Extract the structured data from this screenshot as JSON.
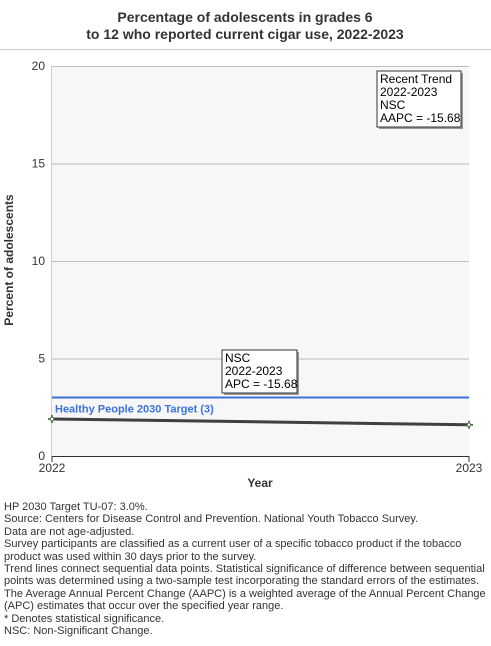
{
  "chart_data": {
    "type": "line",
    "title_lines": [
      "Percentage of adolescents in grades 6",
      "to 12 who reported current cigar use, 2022-2023"
    ],
    "xlabel": "Year",
    "ylabel": "Percent of adolescents",
    "x": [
      2022,
      2023
    ],
    "x_tick_labels": [
      "2022",
      "2023"
    ],
    "ylim": [
      0,
      20
    ],
    "y_ticks": [
      0,
      5,
      10,
      15,
      20
    ],
    "grid": true,
    "series": [
      {
        "values": [
          1.9,
          1.6
        ],
        "color": "#404040"
      }
    ],
    "target": {
      "value": 3.0,
      "label": "Healthy People 2030 Target (3)",
      "color": "#3b73d6"
    },
    "trend_box": {
      "lines": [
        "Recent Trend",
        "2022-2023",
        "NSC",
        "AAPC = -15.68"
      ],
      "position": "top-right"
    },
    "segment_box": {
      "lines": [
        "NSC",
        "2022-2023",
        "APC = -15.68"
      ]
    }
  },
  "notes": [
    "HP 2030 Target TU-07: 3.0%.",
    "Source: Centers for Disease Control and Prevention. National Youth Tobacco Survey.",
    "Data are not age-adjusted.",
    "Survey participants are classified as a current user of a specific tobacco product if the tobacco product was used within 30 days prior to the survey.",
    "Trend lines connect sequential data points. Statistical significance of difference between sequential points was determined using a two-sample test incorporating the standard errors of the estimates.",
    "The Average Annual Percent Change (AAPC) is a weighted average of the Annual Percent Change (APC) estimates that occur over the specified year range.",
    "* Denotes statistical significance.",
    "NSC: Non-Significant Change."
  ]
}
